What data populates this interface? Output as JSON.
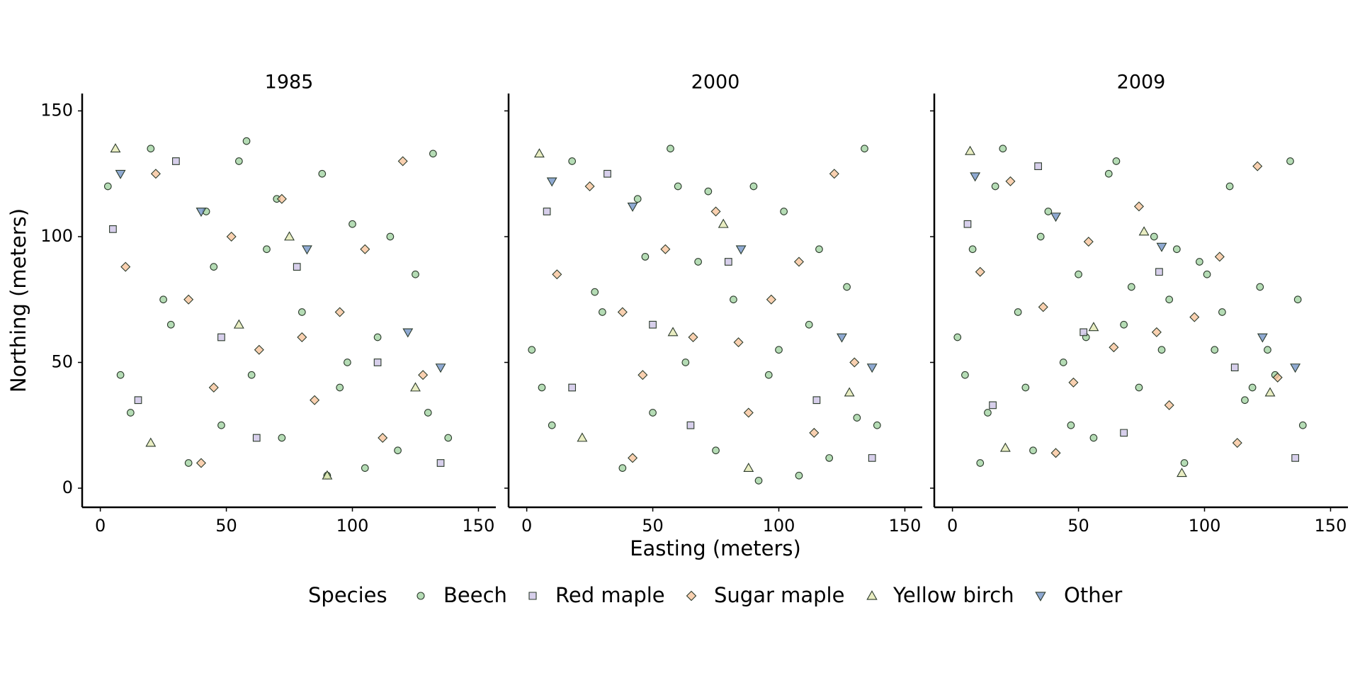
{
  "chart_data": {
    "type": "scatter",
    "x_label": "Easting (meters)",
    "y_label": "Northing (meters)",
    "legend_title": "Species",
    "xlim": [
      -7.2,
      156.9
    ],
    "ylim": [
      -7.6,
      156.9
    ],
    "xticks": [
      0,
      50,
      100,
      150
    ],
    "yticks": [
      0,
      50,
      100,
      150
    ],
    "series": [
      {
        "name": "Beech",
        "color": "#a3d3a3",
        "marker": "circle"
      },
      {
        "name": "Red maple",
        "color": "#cdc3e6",
        "marker": "square"
      },
      {
        "name": "Sugar maple",
        "color": "#f7c49c",
        "marker": "diamond"
      },
      {
        "name": "Yellow birch",
        "color": "#e3e9b3",
        "marker": "triangle-up"
      },
      {
        "name": "Other",
        "color": "#7393c7",
        "marker": "triangle-down"
      }
    ],
    "facets": [
      {
        "title": "1985",
        "series": [
          {
            "x": [
              3,
              12,
              20,
              28,
              35,
              42,
              48,
              55,
              60,
              66,
              72,
              80,
              88,
              95,
              100,
              105,
              110,
              118,
              125,
              132,
              138,
              8,
              45,
              70,
              98,
              115,
              130,
              25,
              58,
              90
            ],
            "y": [
              120,
              30,
              135,
              65,
              10,
              110,
              25,
              130,
              45,
              95,
              20,
              70,
              125,
              40,
              105,
              8,
              60,
              15,
              85,
              133,
              20,
              45,
              88,
              115,
              50,
              100,
              30,
              75,
              138,
              5
            ]
          },
          {
            "x": [
              5,
              15,
              30,
              48,
              62,
              78,
              110,
              135
            ],
            "y": [
              103,
              35,
              130,
              60,
              20,
              88,
              50,
              10
            ]
          },
          {
            "x": [
              10,
              22,
              35,
              45,
              52,
              63,
              72,
              85,
              95,
              105,
              112,
              120,
              128,
              40,
              80
            ],
            "y": [
              88,
              125,
              75,
              40,
              100,
              55,
              115,
              35,
              70,
              95,
              20,
              130,
              45,
              10,
              60
            ]
          },
          {
            "x": [
              6,
              20,
              55,
              75,
              90,
              125
            ],
            "y": [
              135,
              18,
              65,
              100,
              5,
              40
            ]
          },
          {
            "x": [
              8,
              40,
              82,
              122,
              135
            ],
            "y": [
              125,
              110,
              95,
              62,
              48
            ]
          }
        ]
      },
      {
        "title": "2000",
        "series": [
          {
            "x": [
              2,
              10,
              18,
              30,
              38,
              44,
              50,
              57,
              63,
              68,
              75,
              82,
              90,
              96,
              102,
              108,
              112,
              120,
              127,
              134,
              139,
              6,
              47,
              72,
              100,
              116,
              131,
              27,
              60,
              92
            ],
            "y": [
              55,
              25,
              130,
              70,
              8,
              115,
              30,
              135,
              50,
              90,
              15,
              75,
              120,
              45,
              110,
              5,
              65,
              12,
              80,
              135,
              25,
              40,
              92,
              118,
              55,
              95,
              28,
              78,
              120,
              3
            ]
          },
          {
            "x": [
              8,
              18,
              32,
              50,
              65,
              80,
              115,
              137
            ],
            "y": [
              110,
              40,
              125,
              65,
              25,
              90,
              35,
              12
            ]
          },
          {
            "x": [
              12,
              25,
              38,
              46,
              55,
              66,
              75,
              88,
              97,
              108,
              114,
              122,
              130,
              42,
              84
            ],
            "y": [
              85,
              120,
              70,
              45,
              95,
              60,
              110,
              30,
              75,
              90,
              22,
              125,
              50,
              12,
              58
            ]
          },
          {
            "x": [
              5,
              22,
              58,
              78,
              88,
              128
            ],
            "y": [
              133,
              20,
              62,
              105,
              8,
              38
            ]
          },
          {
            "x": [
              10,
              42,
              85,
              125,
              137
            ],
            "y": [
              122,
              112,
              95,
              60,
              48
            ]
          }
        ]
      },
      {
        "title": "2009",
        "series": [
          {
            "x": [
              2,
              8,
              14,
              20,
              26,
              32,
              38,
              44,
              50,
              56,
              62,
              68,
              74,
              80,
              86,
              92,
              98,
              104,
              110,
              116,
              122,
              128,
              134,
              139,
              5,
              17,
              35,
              53,
              71,
              89,
              107,
              125,
              11,
              29,
              47,
              65,
              83,
              101,
              119,
              137
            ],
            "y": [
              60,
              95,
              30,
              135,
              70,
              15,
              110,
              50,
              85,
              20,
              125,
              65,
              40,
              100,
              75,
              10,
              90,
              55,
              120,
              35,
              80,
              45,
              130,
              25,
              45,
              120,
              100,
              60,
              80,
              95,
              70,
              55,
              10,
              40,
              25,
              130,
              55,
              85,
              40,
              75
            ]
          },
          {
            "x": [
              6,
              16,
              34,
              52,
              68,
              82,
              112,
              136
            ],
            "y": [
              105,
              33,
              128,
              62,
              22,
              86,
              48,
              12
            ]
          },
          {
            "x": [
              11,
              23,
              36,
              48,
              54,
              64,
              74,
              86,
              96,
              106,
              113,
              121,
              129,
              41,
              81
            ],
            "y": [
              86,
              122,
              72,
              42,
              98,
              56,
              112,
              33,
              68,
              92,
              18,
              128,
              44,
              14,
              62
            ]
          },
          {
            "x": [
              7,
              21,
              56,
              76,
              91,
              126
            ],
            "y": [
              134,
              16,
              64,
              102,
              6,
              38
            ]
          },
          {
            "x": [
              9,
              41,
              83,
              123,
              136
            ],
            "y": [
              124,
              108,
              96,
              60,
              48
            ]
          }
        ]
      }
    ]
  }
}
